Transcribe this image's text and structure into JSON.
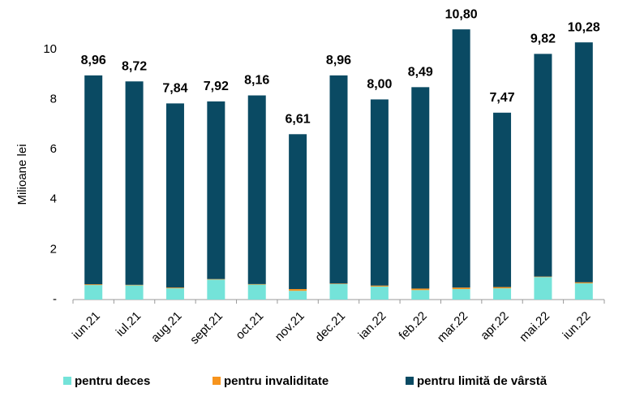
{
  "chart_data": {
    "type": "stacked_bar",
    "y_label": "Milioane lei",
    "categories": [
      "iun.21",
      "iul.21",
      "aug.21",
      "sept.21",
      "oct.21",
      "nov.21",
      "dec.21",
      "ian.22",
      "feb.22",
      "mar.22",
      "apr.22",
      "mai.22",
      "iun.22"
    ],
    "series": [
      {
        "name": "pentru deces",
        "color": "#74e3d9",
        "values": [
          0.58,
          0.57,
          0.45,
          0.8,
          0.6,
          0.35,
          0.62,
          0.52,
          0.38,
          0.42,
          0.45,
          0.9,
          0.65
        ]
      },
      {
        "name": "pentru invaliditate",
        "color": "#f7941d",
        "values": [
          0.03,
          0.02,
          0.03,
          0.02,
          0.02,
          0.07,
          0.02,
          0.04,
          0.06,
          0.06,
          0.05,
          0.02,
          0.04
        ]
      },
      {
        "name": "pentru limită de vârstă",
        "color": "#0a4a63",
        "values": [
          8.35,
          8.13,
          7.36,
          7.1,
          7.54,
          6.19,
          8.32,
          7.44,
          8.05,
          10.32,
          6.97,
          8.9,
          9.59
        ]
      }
    ],
    "totals": [
      8.96,
      8.72,
      7.84,
      7.92,
      8.16,
      6.61,
      8.96,
      8.0,
      8.49,
      10.8,
      7.47,
      9.82,
      10.28
    ],
    "total_labels": [
      "8,96",
      "8,72",
      "7,84",
      "7,92",
      "8,16",
      "6,61",
      "8,96",
      "8,00",
      "8,49",
      "10,80",
      "7,47",
      "9,82",
      "10,28"
    ],
    "ylim": [
      0,
      11
    ],
    "yticks": [
      {
        "value": 0,
        "label": "-"
      },
      2,
      4,
      6,
      8,
      10
    ],
    "grid": false
  }
}
